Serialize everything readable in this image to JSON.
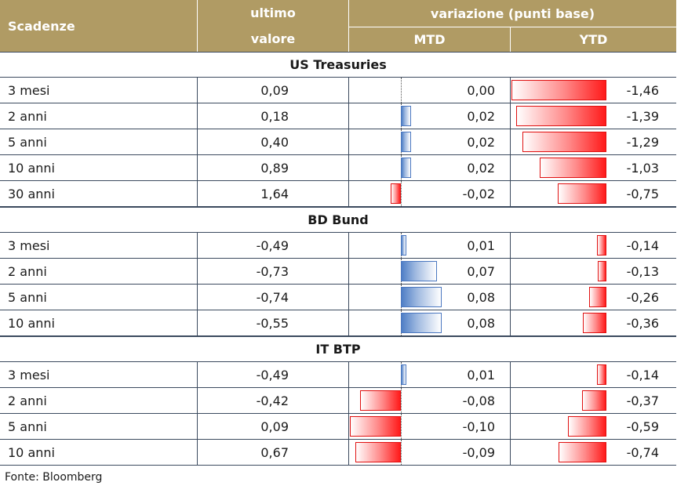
{
  "header": {
    "col_scadenze": "Scadenze",
    "col_ultimo_line1": "ultimo",
    "col_ultimo_line2": "valore",
    "col_variazione": "variazione (punti base)",
    "col_mtd": "MTD",
    "col_ytd": "YTD"
  },
  "source": "Fonte: Bloomberg",
  "colors": {
    "header_bg": "#b09b64",
    "positive": "#4f7fc6",
    "negative": "#ff1a1a"
  },
  "chart_data": {
    "type": "table",
    "sections": [
      {
        "title": "US Treasuries",
        "rows": [
          {
            "scadenza": "3 mesi",
            "ultimo": "0,09",
            "mtd": "0,00",
            "ytd": "-1,46",
            "mtd_value": 0.0,
            "ytd_value": -1.46
          },
          {
            "scadenza": "2 anni",
            "ultimo": "0,18",
            "mtd": "0,02",
            "ytd": "-1,39",
            "mtd_value": 0.02,
            "ytd_value": -1.39
          },
          {
            "scadenza": "5 anni",
            "ultimo": "0,40",
            "mtd": "0,02",
            "ytd": "-1,29",
            "mtd_value": 0.02,
            "ytd_value": -1.29
          },
          {
            "scadenza": "10 anni",
            "ultimo": "0,89",
            "mtd": "0,02",
            "ytd": "-1,03",
            "mtd_value": 0.02,
            "ytd_value": -1.03
          },
          {
            "scadenza": "30 anni",
            "ultimo": "1,64",
            "mtd": "-0,02",
            "ytd": "-0,75",
            "mtd_value": -0.02,
            "ytd_value": -0.75
          }
        ]
      },
      {
        "title": "BD Bund",
        "rows": [
          {
            "scadenza": "3 mesi",
            "ultimo": "-0,49",
            "mtd": "0,01",
            "ytd": "-0,14",
            "mtd_value": 0.01,
            "ytd_value": -0.14
          },
          {
            "scadenza": "2 anni",
            "ultimo": "-0,73",
            "mtd": "0,07",
            "ytd": "-0,13",
            "mtd_value": 0.07,
            "ytd_value": -0.13
          },
          {
            "scadenza": "5 anni",
            "ultimo": "-0,74",
            "mtd": "0,08",
            "ytd": "-0,26",
            "mtd_value": 0.08,
            "ytd_value": -0.26
          },
          {
            "scadenza": "10 anni",
            "ultimo": "-0,55",
            "mtd": "0,08",
            "ytd": "-0,36",
            "mtd_value": 0.08,
            "ytd_value": -0.36
          }
        ]
      },
      {
        "title": "IT BTP",
        "rows": [
          {
            "scadenza": "3 mesi",
            "ultimo": "-0,49",
            "mtd": "0,01",
            "ytd": "-0,14",
            "mtd_value": 0.01,
            "ytd_value": -0.14
          },
          {
            "scadenza": "2 anni",
            "ultimo": "-0,42",
            "mtd": "-0,08",
            "ytd": "-0,37",
            "mtd_value": -0.08,
            "ytd_value": -0.37
          },
          {
            "scadenza": "5 anni",
            "ultimo": "0,09",
            "mtd": "-0,10",
            "ytd": "-0,59",
            "mtd_value": -0.1,
            "ytd_value": -0.59
          },
          {
            "scadenza": "10 anni",
            "ultimo": "0,67",
            "mtd": "-0,09",
            "ytd": "-0,74",
            "mtd_value": -0.09,
            "ytd_value": -0.74
          }
        ]
      }
    ]
  }
}
